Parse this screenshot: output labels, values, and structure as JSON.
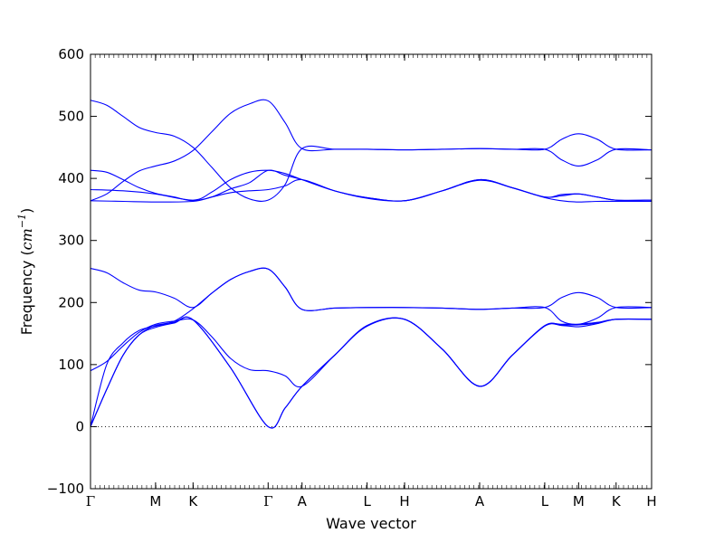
{
  "chart_data": {
    "type": "line",
    "xlabel": "Wave vector",
    "ylabel_prefix": "Frequency (",
    "ylabel_unit": "cm",
    "ylabel_exponent": "−1",
    "ylabel_suffix": ")",
    "ylim": [
      -100,
      600
    ],
    "yticks": [
      -100,
      0,
      100,
      200,
      300,
      400,
      500,
      600
    ],
    "xlim": [
      0,
      4.536
    ],
    "high_symmetry_points": [
      {
        "label": "Γ",
        "x": 0.0
      },
      {
        "label": "M",
        "x": 0.526
      },
      {
        "label": "K",
        "x": 0.829
      },
      {
        "label": "Γ",
        "x": 1.436
      },
      {
        "label": "A",
        "x": 1.71
      },
      {
        "label": "L",
        "x": 2.236
      },
      {
        "label": "H",
        "x": 2.539
      },
      {
        "label": "A",
        "x": 3.146
      },
      {
        "label": "L",
        "x": 3.672
      },
      {
        "label": "M",
        "x": 3.946
      },
      {
        "label": "K",
        "x": 4.249
      },
      {
        "label": "H",
        "x": 4.536
      }
    ],
    "zero_line": true,
    "line_color": "#0000ff",
    "series": [
      {
        "x": [
          0,
          0.131,
          0.263,
          0.394,
          0.526,
          0.677,
          0.829,
          1.132,
          1.436,
          1.573,
          1.71,
          1.973,
          2.236,
          2.539,
          2.843,
          3.146,
          3.409,
          3.672,
          3.809,
          3.946,
          4.097,
          4.249,
          4.536
        ],
        "y": [
          0,
          60,
          115,
          148,
          160,
          167,
          172,
          95,
          0,
          30,
          65,
          115,
          162,
          173,
          125,
          65,
          115,
          162,
          163,
          161,
          166,
          173,
          173
        ]
      },
      {
        "x": [
          0,
          0.131,
          0.263,
          0.394,
          0.526,
          0.677,
          0.829,
          1.132,
          1.436,
          1.573,
          1.71,
          1.973,
          2.236,
          2.539,
          2.843,
          3.146,
          3.409,
          3.672,
          3.809,
          3.946,
          4.097,
          4.249,
          4.536
        ],
        "y": [
          0,
          60,
          115,
          148,
          163,
          168,
          172,
          95,
          0,
          30,
          65,
          115,
          163,
          173,
          125,
          65,
          115,
          163,
          164,
          164,
          167,
          173,
          173
        ]
      },
      {
        "x": [
          0,
          0.131,
          0.263,
          0.394,
          0.526,
          0.677,
          0.829,
          0.98,
          1.132,
          1.284,
          1.436,
          1.573,
          1.71,
          1.973,
          2.236,
          2.539,
          2.843,
          3.146,
          3.409,
          3.672,
          3.809,
          3.946,
          4.097,
          4.249,
          4.536
        ],
        "y": [
          90,
          105,
          130,
          152,
          165,
          170,
          172,
          145,
          110,
          92,
          90,
          82,
          65,
          115,
          162,
          173,
          125,
          65,
          115,
          162,
          165,
          165,
          168,
          173,
          173
        ]
      },
      {
        "x": [
          0,
          0.131,
          0.263,
          0.394,
          0.526,
          0.677,
          0.829,
          0.98,
          1.132,
          1.284,
          1.436,
          1.573,
          1.71,
          1.973,
          2.236,
          2.539,
          2.843,
          3.146,
          3.409,
          3.672,
          3.809,
          3.946,
          4.097,
          4.249,
          4.536
        ],
        "y": [
          255,
          248,
          232,
          220,
          217,
          207,
          192,
          215,
          237,
          250,
          254,
          225,
          189,
          191,
          192,
          192,
          191,
          189,
          191,
          192,
          208,
          216,
          208,
          192,
          192
        ]
      },
      {
        "x": [
          0,
          0.131,
          0.263,
          0.394,
          0.526,
          0.677,
          0.829,
          0.98,
          1.132,
          1.284,
          1.436,
          1.573,
          1.71,
          1.973,
          2.236,
          2.539,
          2.843,
          3.146,
          3.409,
          3.672,
          3.809,
          3.946,
          4.097,
          4.249,
          4.536
        ],
        "y": [
          0,
          100,
          135,
          155,
          162,
          170,
          190,
          215,
          237,
          250,
          254,
          225,
          189,
          191,
          192,
          192,
          191,
          189,
          191,
          192,
          170,
          165,
          175,
          192,
          192
        ]
      },
      {
        "x": [
          0,
          0.263,
          0.526,
          0.829,
          0.98,
          1.132,
          1.284,
          1.436,
          1.573,
          1.71,
          1.973,
          2.236,
          2.539,
          2.843,
          3.146,
          3.409,
          3.672,
          3.809,
          3.946,
          4.097,
          4.249,
          4.536
        ],
        "y": [
          364,
          363,
          362,
          363,
          370,
          377,
          380,
          382,
          388,
          398,
          380,
          368,
          364,
          380,
          397,
          385,
          369,
          364,
          362,
          363,
          363,
          363
        ]
      },
      {
        "x": [
          0,
          0.263,
          0.526,
          0.829,
          0.98,
          1.132,
          1.284,
          1.436,
          1.573,
          1.71,
          1.973,
          2.236,
          2.539,
          2.843,
          3.146,
          3.409,
          3.672,
          3.809,
          3.946,
          4.097,
          4.249,
          4.536
        ],
        "y": [
          382,
          380,
          375,
          365,
          378,
          398,
          410,
          413,
          408,
          398,
          380,
          369,
          364,
          380,
          398,
          385,
          370,
          374,
          375,
          370,
          365,
          365
        ]
      },
      {
        "x": [
          0,
          0.131,
          0.263,
          0.394,
          0.526,
          0.677,
          0.829,
          0.98,
          1.132,
          1.284,
          1.436,
          1.573,
          1.71,
          1.973,
          2.236,
          2.539,
          2.843,
          3.146,
          3.409,
          3.672,
          3.809,
          3.946,
          4.097,
          4.249,
          4.536
        ],
        "y": [
          413,
          410,
          398,
          385,
          376,
          370,
          364,
          370,
          383,
          393,
          413,
          405,
          398,
          380,
          369,
          364,
          380,
          398,
          385,
          370,
          372,
          375,
          370,
          365,
          365
        ]
      },
      {
        "x": [
          0,
          0.131,
          0.263,
          0.394,
          0.526,
          0.677,
          0.829,
          0.98,
          1.132,
          1.284,
          1.436,
          1.573,
          1.71,
          1.973,
          2.236,
          2.539,
          2.843,
          3.146,
          3.409,
          3.672,
          3.809,
          3.946,
          4.097,
          4.249,
          4.536
        ],
        "y": [
          364,
          375,
          395,
          412,
          420,
          428,
          445,
          475,
          505,
          520,
          525,
          490,
          448,
          447,
          447,
          446,
          447,
          448,
          447,
          447,
          463,
          472,
          463,
          447,
          446
        ]
      },
      {
        "x": [
          0,
          0.131,
          0.263,
          0.394,
          0.526,
          0.677,
          0.829,
          0.98,
          1.132,
          1.284,
          1.436,
          1.573,
          1.71,
          1.973,
          2.236,
          2.539,
          2.843,
          3.146,
          3.409,
          3.672,
          3.809,
          3.946,
          4.097,
          4.249,
          4.536
        ],
        "y": [
          526,
          518,
          500,
          482,
          474,
          468,
          450,
          418,
          385,
          367,
          365,
          390,
          448,
          447,
          447,
          446,
          447,
          448,
          447,
          447,
          430,
          420,
          430,
          447,
          446
        ]
      }
    ]
  }
}
